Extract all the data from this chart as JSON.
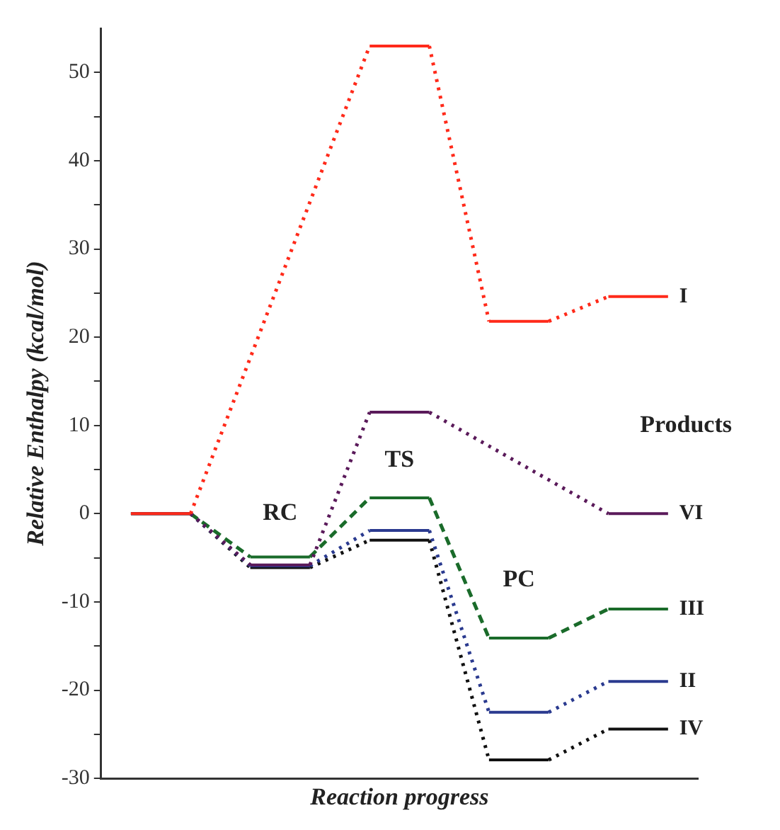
{
  "chart_data": {
    "type": "line",
    "xlabel": "Reaction progress",
    "ylabel": "Relative Enthalpy (kcal/mol)",
    "categories": [
      null,
      null,
      null,
      null,
      null,
      null,
      null,
      null,
      null,
      null
    ],
    "ylim": [
      -30,
      55
    ],
    "yticks": [
      -30,
      {
        "value": -25,
        "label": null
      },
      -20,
      {
        "value": -15,
        "label": null
      },
      -10,
      {
        "value": -5,
        "label": null
      },
      0,
      {
        "value": 5,
        "label": null
      },
      10,
      {
        "value": 15,
        "label": null
      },
      20,
      {
        "value": 25,
        "label": null
      },
      30,
      {
        "value": 35,
        "label": null
      },
      40,
      {
        "value": 45,
        "label": null
      },
      50
    ],
    "grid": false,
    "legend": "right",
    "marker": "none",
    "series": [
      {
        "name": "I",
        "color": "#ff2a1a",
        "line_style": "dotted",
        "values": [
          0,
          0,
          null,
          null,
          53,
          53,
          21.8,
          21.8,
          24.6,
          24.6
        ]
      },
      {
        "name": "VI",
        "color": "#5a1a5a",
        "line_style": "dotted",
        "values": [
          0,
          0,
          -5.8,
          -5.8,
          11.5,
          11.5,
          null,
          null,
          0,
          0
        ]
      },
      {
        "name": "III",
        "color": "#1a6b2a",
        "line_style": "dashed",
        "values": [
          0,
          0,
          -4.9,
          -4.9,
          1.8,
          1.8,
          -14.1,
          -14.1,
          -10.8,
          -10.8
        ]
      },
      {
        "name": "II",
        "color": "#2a3a8f",
        "line_style": "dotted",
        "values": [
          0,
          0,
          -5.9,
          -5.9,
          -1.9,
          -1.9,
          -22.5,
          -22.5,
          -19,
          -19
        ]
      },
      {
        "name": "IV",
        "color": "#111111",
        "line_style": "dotted",
        "values": [
          0,
          0,
          -6.1,
          -6.1,
          -3,
          -3,
          -27.9,
          -27.9,
          -24.4,
          -24.4
        ]
      }
    ],
    "annotations": [
      "RC",
      "TS",
      "PC",
      "Products"
    ]
  }
}
